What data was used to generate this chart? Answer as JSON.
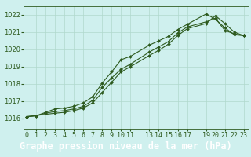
{
  "title": "Graphe pression niveau de la mer (hPa)",
  "xlabel_ticks": [
    "0",
    "1",
    "2",
    "3",
    "4",
    "5",
    "6",
    "7",
    "8",
    "9",
    "10",
    "11",
    "13",
    "14",
    "15",
    "16",
    "17",
    "19",
    "20",
    "21",
    "22",
    "23"
  ],
  "xtick_positions": [
    0,
    1,
    2,
    3,
    4,
    5,
    6,
    7,
    8,
    9,
    10,
    11,
    13,
    14,
    15,
    16,
    17,
    19,
    20,
    21,
    22,
    23
  ],
  "ylim": [
    1015.4,
    1022.5
  ],
  "xlim": [
    -0.3,
    23.5
  ],
  "yticks": [
    1016,
    1017,
    1018,
    1019,
    1020,
    1021,
    1022
  ],
  "bg_color": "#cff0ee",
  "grid_color": "#b0d8cc",
  "line_color": "#2d5a1e",
  "line1_x": [
    0,
    1,
    2,
    3,
    4,
    5,
    6,
    7,
    8,
    9,
    10,
    11,
    13,
    14,
    15,
    16,
    17,
    19,
    20,
    21,
    22,
    23
  ],
  "line1_y": [
    1016.1,
    1016.15,
    1016.3,
    1016.4,
    1016.45,
    1016.55,
    1016.7,
    1017.05,
    1017.8,
    1018.35,
    1018.85,
    1019.15,
    1019.85,
    1020.15,
    1020.45,
    1020.95,
    1021.3,
    1021.6,
    1021.8,
    1021.1,
    1020.9,
    1020.8
  ],
  "line2_x": [
    0,
    1,
    2,
    3,
    4,
    5,
    6,
    7,
    8,
    9,
    10,
    11,
    13,
    14,
    15,
    16,
    17,
    19,
    20,
    21,
    22,
    23
  ],
  "line2_y": [
    1016.1,
    1016.15,
    1016.35,
    1016.55,
    1016.6,
    1016.7,
    1016.9,
    1017.25,
    1018.05,
    1018.7,
    1019.4,
    1019.6,
    1020.25,
    1020.5,
    1020.75,
    1021.15,
    1021.45,
    1022.05,
    1021.75,
    1021.25,
    1020.85,
    1020.8
  ],
  "line3_x": [
    0,
    3,
    4,
    5,
    6,
    7,
    8,
    9,
    10,
    11,
    13,
    14,
    15,
    16,
    17,
    19,
    20,
    21,
    22,
    23
  ],
  "line3_y": [
    1016.1,
    1016.3,
    1016.35,
    1016.45,
    1016.6,
    1016.9,
    1017.5,
    1018.1,
    1018.7,
    1019.0,
    1019.65,
    1019.95,
    1020.3,
    1020.8,
    1021.2,
    1021.5,
    1021.95,
    1021.5,
    1021.0,
    1020.8
  ],
  "marker": "D",
  "markersize": 2.0,
  "linewidth": 0.8,
  "title_fontsize": 8.5,
  "tick_fontsize": 6.0,
  "title_bg": "#3a6b35",
  "title_fg": "white"
}
